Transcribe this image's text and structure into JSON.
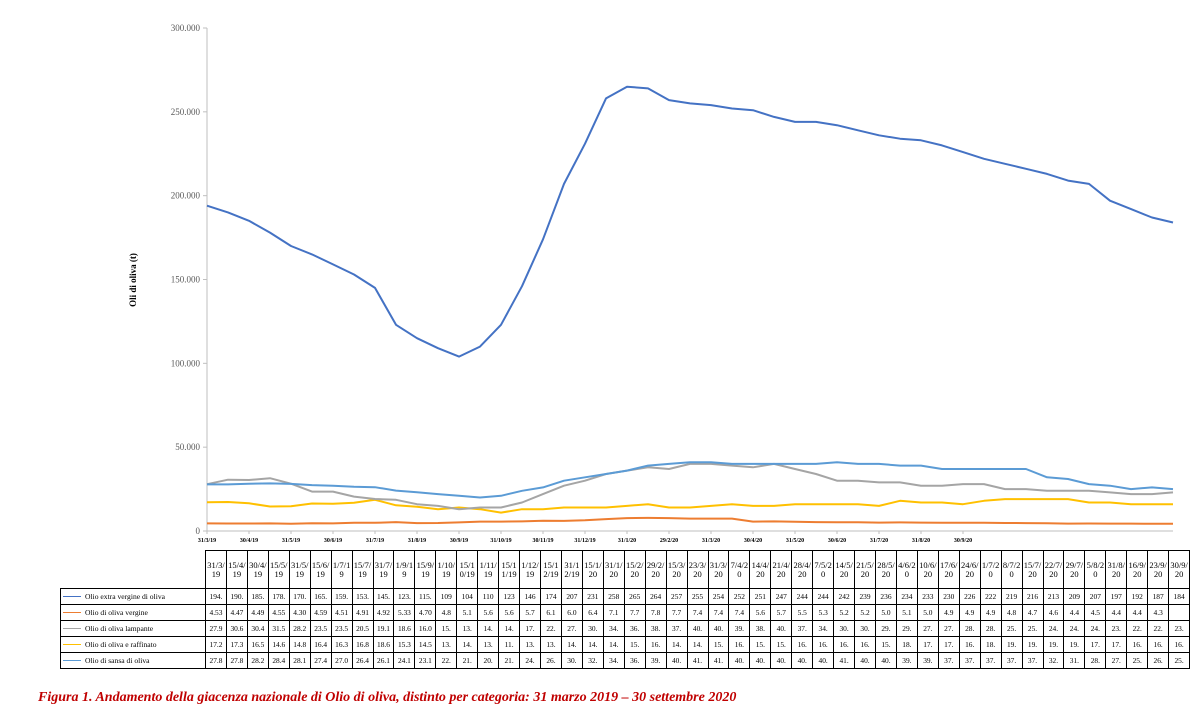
{
  "chart_data": {
    "type": "line",
    "ylabel": "Oli di oliva (t)",
    "ylim": [
      0,
      300000
    ],
    "y_ticks": [
      "0",
      "50.000",
      "100.000",
      "150.000",
      "200.000",
      "250.000",
      "300.000"
    ],
    "y_tick_values": [
      0,
      50000,
      100000,
      150000,
      200000,
      250000,
      300000
    ],
    "grid": false,
    "x_axis_labels": [
      "31/3/19",
      "30/4/19",
      "31/5/19",
      "30/6/19",
      "31/7/19",
      "31/8/19",
      "30/9/19",
      "31/10/19",
      "30/11/19",
      "31/12/19",
      "31/1/20",
      "29/2/20",
      "31/3/20",
      "30/4/20",
      "31/5/20",
      "30/6/20",
      "31/7/20",
      "31/8/20",
      "30/9/20"
    ],
    "x_axis_label_index": [
      0,
      2,
      4,
      6,
      8,
      10,
      12,
      14,
      16,
      18,
      20,
      22,
      24,
      26,
      28,
      30,
      32,
      34,
      36
    ],
    "categories": [
      "31/3/19",
      "15/4/19",
      "30/4/19",
      "15/5/19",
      "31/5/19",
      "15/6/19",
      "1/7/19",
      "15/7/19",
      "31/7/19",
      "1/9/19",
      "15/9/19",
      "1/10/19",
      "15/10/19",
      "1/11/19",
      "15/11/19",
      "1/12/19",
      "15/12/19",
      "31/12/19",
      "15/1/20",
      "31/1/20",
      "15/2/20",
      "29/2/20",
      "15/3/20",
      "23/3/20",
      "31/3/20",
      "7/4/20",
      "14/4/20",
      "21/4/20",
      "28/4/20",
      "7/5/20",
      "14/5/20",
      "21/5/20",
      "28/5/20",
      "4/6/20",
      "10/6/20",
      "17/6/20",
      "24/6/20",
      "1/7/20",
      "8/7/20",
      "15/7/20",
      "22/7/20",
      "29/7/20",
      "5/8/20",
      "31/8/20",
      "16/9/20",
      "23/9/20",
      "30/9/20"
    ],
    "series": [
      {
        "name": "Olio extra vergine di oliva",
        "color": "#4472c4",
        "values": [
          194000,
          190000,
          185000,
          178000,
          170000,
          165000,
          159000,
          153000,
          145000,
          123000,
          115000,
          109000,
          104000,
          110000,
          123000,
          146000,
          174000,
          207000,
          231000,
          258000,
          265000,
          264000,
          257000,
          255000,
          254000,
          252000,
          251000,
          247000,
          244000,
          244000,
          242000,
          239000,
          236000,
          234000,
          233000,
          230000,
          226000,
          222000,
          219000,
          216000,
          213000,
          209000,
          207000,
          197000,
          192000,
          187000,
          184000
        ],
        "table": [
          "194.",
          "190.",
          "185.",
          "178.",
          "170.",
          "165.",
          "159.",
          "153.",
          "145.",
          "123.",
          "115.",
          "109",
          "104",
          "110",
          "123",
          "146",
          "174",
          "207",
          "231",
          "258",
          "265",
          "264",
          "257",
          "255",
          "254",
          "252",
          "251",
          "247",
          "244",
          "244",
          "242",
          "239",
          "236",
          "234",
          "233",
          "230",
          "226",
          "222",
          "219",
          "216",
          "213",
          "209",
          "207",
          "197",
          "192",
          "187",
          "184"
        ]
      },
      {
        "name": "Olio di oliva vergine",
        "color": "#ed7d31",
        "values": [
          4530,
          4470,
          4490,
          4550,
          4300,
          4590,
          4510,
          4910,
          4920,
          5330,
          4700,
          4800,
          5100,
          5600,
          5600,
          5700,
          6100,
          6000,
          6400,
          7100,
          7700,
          7800,
          7700,
          7400,
          7400,
          7400,
          5600,
          5700,
          5500,
          5300,
          5200,
          5200,
          5000,
          5100,
          5000,
          4900,
          4900,
          4900,
          4800,
          4700,
          4600,
          4400,
          4500,
          4400,
          4400,
          4300,
          4300
        ],
        "table": [
          "4.53",
          "4.47",
          "4.49",
          "4.55",
          "4.30",
          "4.59",
          "4.51",
          "4.91",
          "4.92",
          "5.33",
          "4.70",
          "4.8",
          "5.1",
          "5.6",
          "5.6",
          "5.7",
          "6.1",
          "6.0",
          "6.4",
          "7.1",
          "7.7",
          "7.8",
          "7.7",
          "7.4",
          "7.4",
          "7.4",
          "5.6",
          "5.7",
          "5.5",
          "5.3",
          "5.2",
          "5.2",
          "5.0",
          "5.1",
          "5.0",
          "4.9",
          "4.9",
          "4.9",
          "4.8",
          "4.7",
          "4.6",
          "4.4",
          "4.5",
          "4.4",
          "4.4",
          "4.3",
          ""
        ]
      },
      {
        "name": "Olio di oliva lampante",
        "color": "#a5a5a5",
        "values": [
          27900,
          30600,
          30400,
          31500,
          28200,
          23500,
          23500,
          20500,
          19100,
          18600,
          16000,
          15000,
          13000,
          14000,
          14000,
          17000,
          22000,
          27000,
          30000,
          34000,
          36000,
          38000,
          37000,
          40000,
          40000,
          39000,
          38000,
          40000,
          37000,
          34000,
          30000,
          30000,
          29000,
          29000,
          27000,
          27000,
          28000,
          28000,
          25000,
          25000,
          24000,
          24000,
          24000,
          23000,
          22000,
          22000,
          23000
        ],
        "table": [
          "27.9",
          "30.6",
          "30.4",
          "31.5",
          "28.2",
          "23.5",
          "23.5",
          "20.5",
          "19.1",
          "18.6",
          "16.0",
          "15.",
          "13.",
          "14.",
          "14.",
          "17.",
          "22.",
          "27.",
          "30.",
          "34.",
          "36.",
          "38.",
          "37.",
          "40.",
          "40.",
          "39.",
          "38.",
          "40.",
          "37.",
          "34.",
          "30.",
          "30.",
          "29.",
          "29.",
          "27.",
          "27.",
          "28.",
          "28.",
          "25.",
          "25.",
          "24.",
          "24.",
          "24.",
          "23.",
          "22.",
          "22.",
          "23."
        ]
      },
      {
        "name": "Olio di oliva e raffinato",
        "color": "#ffc000",
        "values": [
          17200,
          17300,
          16500,
          14600,
          14800,
          16400,
          16300,
          16800,
          18600,
          15300,
          14500,
          13000,
          14000,
          13000,
          11000,
          13000,
          13000,
          14000,
          14000,
          14000,
          15000,
          16000,
          14000,
          14000,
          15000,
          16000,
          15000,
          15000,
          16000,
          16000,
          16000,
          16000,
          15000,
          18000,
          17000,
          17000,
          16000,
          18000,
          19000,
          19000,
          19000,
          19000,
          17000,
          17000,
          16000,
          16000,
          16000
        ],
        "table": [
          "17.2",
          "17.3",
          "16.5",
          "14.6",
          "14.8",
          "16.4",
          "16.3",
          "16.8",
          "18.6",
          "15.3",
          "14.5",
          "13.",
          "14.",
          "13.",
          "11.",
          "13.",
          "13.",
          "14.",
          "14.",
          "14.",
          "15.",
          "16.",
          "14.",
          "14.",
          "15.",
          "16.",
          "15.",
          "15.",
          "16.",
          "16.",
          "16.",
          "16.",
          "15.",
          "18.",
          "17.",
          "17.",
          "16.",
          "18.",
          "19.",
          "19.",
          "19.",
          "19.",
          "17.",
          "17.",
          "16.",
          "16.",
          "16."
        ]
      },
      {
        "name": "Olio di sansa di oliva",
        "color": "#5b9bd5",
        "values": [
          27800,
          27800,
          28200,
          28400,
          28100,
          27400,
          27000,
          26400,
          26100,
          24100,
          23100,
          22000,
          21000,
          20000,
          21000,
          24000,
          26000,
          30000,
          32000,
          34000,
          36000,
          39000,
          40000,
          41000,
          41000,
          40000,
          40000,
          40000,
          40000,
          40000,
          41000,
          40000,
          40000,
          39000,
          39000,
          37000,
          37000,
          37000,
          37000,
          37000,
          32000,
          31000,
          28000,
          27000,
          25000,
          26000,
          25000
        ],
        "table": [
          "27.8",
          "27.8",
          "28.2",
          "28.4",
          "28.1",
          "27.4",
          "27.0",
          "26.4",
          "26.1",
          "24.1",
          "23.1",
          "22.",
          "21.",
          "20.",
          "21.",
          "24.",
          "26.",
          "30.",
          "32.",
          "34.",
          "36.",
          "39.",
          "40.",
          "41.",
          "41.",
          "40.",
          "40.",
          "40.",
          "40.",
          "40.",
          "41.",
          "40.",
          "40.",
          "39.",
          "39.",
          "37.",
          "37.",
          "37.",
          "37.",
          "37.",
          "32.",
          "31.",
          "28.",
          "27.",
          "25.",
          "26.",
          "25."
        ]
      }
    ]
  },
  "caption": "Figura 1. Andamento della giacenza nazionale di Olio di oliva, distinto per categoria: 31 marzo 2019 – 30 settembre 2020"
}
